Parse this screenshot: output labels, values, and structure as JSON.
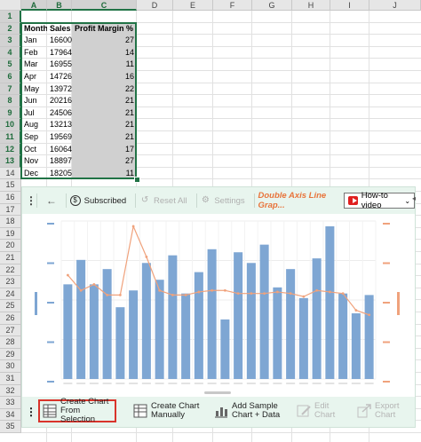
{
  "columns": [
    "A",
    "B",
    "C",
    "D",
    "E",
    "F",
    "G",
    "H",
    "I",
    "J"
  ],
  "rows": [
    "1",
    "2",
    "3",
    "4",
    "5",
    "6",
    "7",
    "8",
    "9",
    "10",
    "11",
    "12",
    "13",
    "14",
    "15",
    "16",
    "17",
    "18",
    "19",
    "20",
    "21",
    "22",
    "23",
    "24",
    "25",
    "26",
    "27",
    "28",
    "29",
    "30",
    "31",
    "32",
    "33",
    "34",
    "35"
  ],
  "table": {
    "headers": [
      "Months",
      "Sales",
      "Profit Margin %"
    ],
    "data": [
      [
        "Jan",
        "16600",
        "27"
      ],
      [
        "Feb",
        "17964",
        "14"
      ],
      [
        "Mar",
        "16955",
        "11"
      ],
      [
        "Apr",
        "14726",
        "16"
      ],
      [
        "May",
        "13972",
        "22"
      ],
      [
        "Jun",
        "20216",
        "21"
      ],
      [
        "Jul",
        "24506",
        "21"
      ],
      [
        "Aug",
        "13213",
        "21"
      ],
      [
        "Sep",
        "19569",
        "21"
      ],
      [
        "Oct",
        "16064",
        "17"
      ],
      [
        "Nov",
        "18897",
        "27"
      ],
      [
        "Dec",
        "18205",
        "11"
      ]
    ]
  },
  "toolbar": {
    "subscribed": "Subscribed",
    "reset_all": "Reset All",
    "settings": "Settings",
    "chart_title": "Double Axis Line Grap...",
    "howto": "How-to video"
  },
  "bottom": {
    "create_sel_1": "Create Chart",
    "create_sel_2": "From Selection",
    "create_man_1": "Create Chart",
    "create_man_2": "Manually",
    "add_sample_1": "Add Sample",
    "add_sample_2": "Chart + Data",
    "edit_1": "Edit",
    "edit_2": "Chart",
    "export_1": "Export",
    "export_2": "Chart"
  },
  "colors": {
    "bar": "#7ea6d3",
    "line": "#f0a27c",
    "excel_green": "#217346",
    "accent_orange": "#e8743b"
  },
  "chart_data": {
    "type": "bar",
    "series": [
      {
        "values": [
          0.62,
          0.78,
          0.62,
          0.72,
          0.47,
          0.58,
          0.76,
          0.65,
          0.81,
          0.56,
          0.7,
          0.85,
          0.39,
          0.83,
          0.76,
          0.88,
          0.6,
          0.72,
          0.53,
          0.79,
          1.0,
          0.56,
          0.43,
          0.55
        ]
      },
      {
        "values": [
          0.68,
          0.58,
          0.62,
          0.55,
          0.55,
          1.0,
          0.8,
          0.58,
          0.55,
          0.55,
          0.57,
          0.58,
          0.58,
          0.56,
          0.56,
          0.56,
          0.57,
          0.56,
          0.54,
          0.58,
          0.57,
          0.56,
          0.45,
          0.42
        ]
      }
    ]
  }
}
